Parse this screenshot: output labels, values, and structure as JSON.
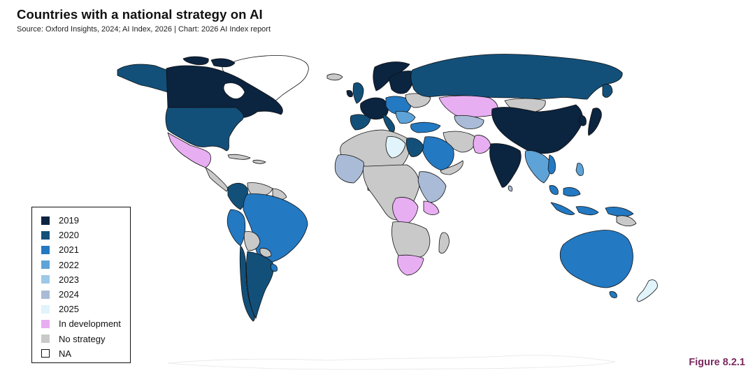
{
  "header": {
    "title": "Countries with a national strategy on AI",
    "subtitle": "Source: Oxford Insights, 2024; AI Index, 2026 | Chart: 2026 AI Index report"
  },
  "figure_label": "Figure 8.2.1",
  "colors": {
    "2019": "#0b2440",
    "2020": "#12507a",
    "2021": "#2379c2",
    "2022": "#5ea3d8",
    "2023": "#9dc8e8",
    "2024": "#a9bbd6",
    "2025": "#e1f3fb",
    "In development": "#e8aef2",
    "No strategy": "#c9c9c9",
    "NA": "#ffffff"
  },
  "legend": {
    "items": [
      {
        "label": "2019",
        "color": "#0b2440"
      },
      {
        "label": "2020",
        "color": "#12507a"
      },
      {
        "label": "2021",
        "color": "#2379c2"
      },
      {
        "label": "2022",
        "color": "#5ea3d8"
      },
      {
        "label": "2023",
        "color": "#9dc8e8"
      },
      {
        "label": "2024",
        "color": "#a9bbd6"
      },
      {
        "label": "2025",
        "color": "#e1f3fb"
      },
      {
        "label": "In development",
        "color": "#e8aef2"
      },
      {
        "label": "No strategy",
        "color": "#c9c9c9"
      },
      {
        "label": "NA",
        "color": "#ffffff",
        "outlined": true
      }
    ]
  }
}
